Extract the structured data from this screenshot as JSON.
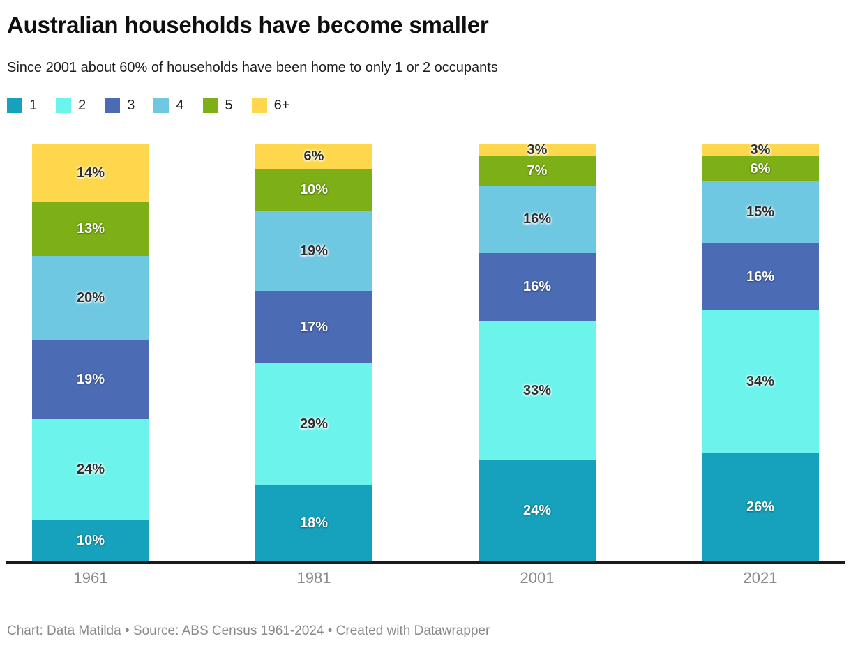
{
  "header": {
    "title": "Australian households have become smaller",
    "subtitle": "Since 2001 about 60% of households have been home to only 1 or 2 occupants"
  },
  "chart_data": {
    "type": "bar",
    "stacked": true,
    "percent": true,
    "title": "Australian households have become smaller",
    "subtitle": "Since 2001 about 60% of households have been home to only 1 or 2 occupants",
    "categories": [
      "1961",
      "1981",
      "2001",
      "2021"
    ],
    "series": [
      {
        "name": "1",
        "color": "#16a2bd",
        "label_color": "#ffffff",
        "values": [
          10,
          18,
          24,
          26
        ]
      },
      {
        "name": "2",
        "color": "#6cf3ec",
        "label_color": "#2f2f2f",
        "values": [
          24,
          29,
          33,
          34
        ]
      },
      {
        "name": "3",
        "color": "#4b6cb5",
        "label_color": "#ffffff",
        "values": [
          19,
          17,
          16,
          16
        ]
      },
      {
        "name": "4",
        "color": "#6fc8e2",
        "label_color": "#2f2f2f",
        "values": [
          20,
          19,
          16,
          15
        ]
      },
      {
        "name": "5",
        "color": "#7cb016",
        "label_color": "#ffffff",
        "values": [
          13,
          10,
          7,
          6
        ]
      },
      {
        "name": "6+",
        "color": "#fed74c",
        "label_color": "#2f2f2f",
        "values": [
          14,
          6,
          3,
          3
        ]
      }
    ],
    "value_suffix": "%",
    "unit": "% of households",
    "legend_position": "top",
    "grid": false,
    "ylim": [
      0,
      100
    ],
    "xlabel": "",
    "ylabel": ""
  },
  "footer": {
    "credit": "Chart: Data Matilda • Source: ABS Census 1961-2024 • Created with Datawrapper"
  }
}
